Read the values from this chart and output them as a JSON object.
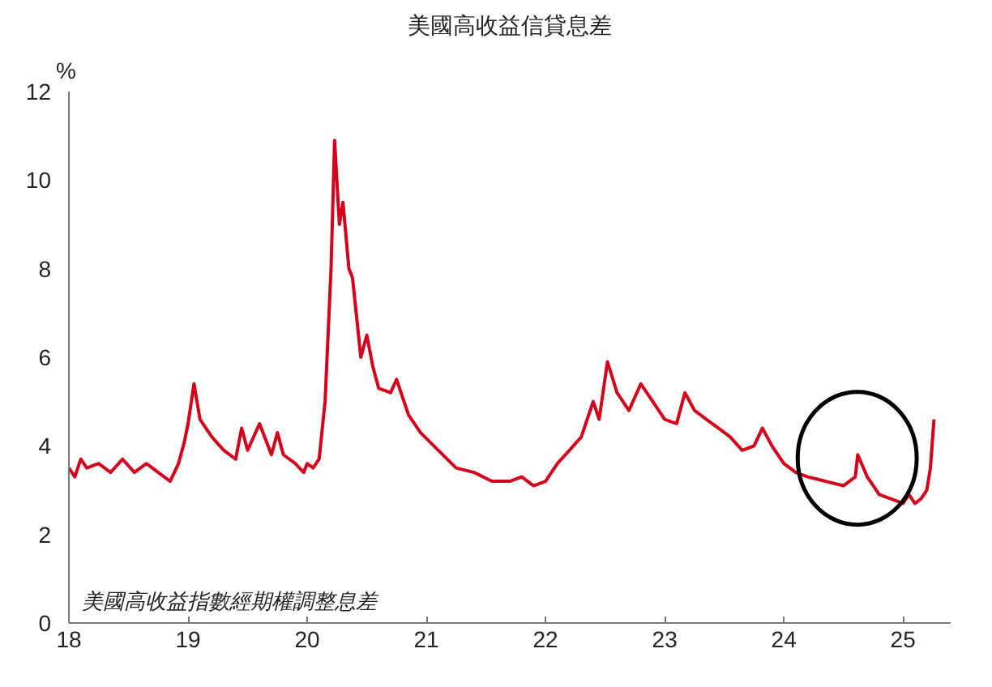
{
  "chart_data": {
    "type": "line",
    "title": "美國高收益信貸息差",
    "ylabel": "%",
    "annotations": [
      "美國高收益指數經期權調整息差"
    ],
    "x": [
      2018.0,
      2018.05,
      2018.1,
      2018.15,
      2018.25,
      2018.35,
      2018.45,
      2018.55,
      2018.65,
      2018.75,
      2018.85,
      2018.92,
      2018.97,
      2019.0,
      2019.05,
      2019.1,
      2019.2,
      2019.3,
      2019.4,
      2019.45,
      2019.5,
      2019.6,
      2019.7,
      2019.75,
      2019.8,
      2019.9,
      2019.97,
      2020.0,
      2020.05,
      2020.1,
      2020.15,
      2020.2,
      2020.23,
      2020.27,
      2020.3,
      2020.35,
      2020.38,
      2020.45,
      2020.5,
      2020.55,
      2020.6,
      2020.7,
      2020.75,
      2020.85,
      2020.95,
      2021.1,
      2021.25,
      2021.4,
      2021.55,
      2021.7,
      2021.8,
      2021.9,
      2022.0,
      2022.1,
      2022.2,
      2022.3,
      2022.4,
      2022.45,
      2022.52,
      2022.6,
      2022.7,
      2022.8,
      2022.9,
      2023.0,
      2023.1,
      2023.17,
      2023.25,
      2023.35,
      2023.45,
      2023.55,
      2023.65,
      2023.75,
      2023.82,
      2023.9,
      2024.0,
      2024.1,
      2024.2,
      2024.35,
      2024.5,
      2024.6,
      2024.62,
      2024.7,
      2024.8,
      2024.9,
      2025.0,
      2025.05,
      2025.1,
      2025.15,
      2025.2,
      2025.23,
      2025.26
    ],
    "series": [
      {
        "color": "#d7001a",
        "values": [
          3.5,
          3.3,
          3.7,
          3.5,
          3.6,
          3.4,
          3.7,
          3.4,
          3.6,
          3.4,
          3.2,
          3.6,
          4.1,
          4.5,
          5.4,
          4.6,
          4.2,
          3.9,
          3.7,
          4.4,
          3.9,
          4.5,
          3.8,
          4.3,
          3.8,
          3.6,
          3.4,
          3.6,
          3.5,
          3.7,
          5.0,
          8.0,
          10.9,
          9.0,
          9.5,
          8.0,
          7.8,
          6.0,
          6.5,
          5.8,
          5.3,
          5.2,
          5.5,
          4.7,
          4.3,
          3.9,
          3.5,
          3.4,
          3.2,
          3.2,
          3.3,
          3.1,
          3.2,
          3.6,
          3.9,
          4.2,
          5.0,
          4.6,
          5.9,
          5.2,
          4.8,
          5.4,
          5.0,
          4.6,
          4.5,
          5.2,
          4.8,
          4.6,
          4.4,
          4.2,
          3.9,
          4.0,
          4.4,
          4.0,
          3.6,
          3.4,
          3.3,
          3.2,
          3.1,
          3.3,
          3.8,
          3.3,
          2.9,
          2.8,
          2.7,
          2.9,
          2.7,
          2.8,
          3.0,
          3.5,
          4.6
        ]
      }
    ],
    "xlim": [
      2018,
      2025.4
    ],
    "xticks": [
      {
        "value": 2018,
        "label": "18"
      },
      {
        "value": 2019,
        "label": "19"
      },
      {
        "value": 2020,
        "label": "20"
      },
      {
        "value": 2021,
        "label": "21"
      },
      {
        "value": 2022,
        "label": "22"
      },
      {
        "value": 2023,
        "label": "23"
      },
      {
        "value": 2024,
        "label": "24"
      },
      {
        "value": 2025,
        "label": "25"
      }
    ],
    "ylim": [
      0,
      12
    ],
    "yticks": [
      0,
      2,
      4,
      6,
      8,
      10,
      12
    ],
    "grid": false
  }
}
